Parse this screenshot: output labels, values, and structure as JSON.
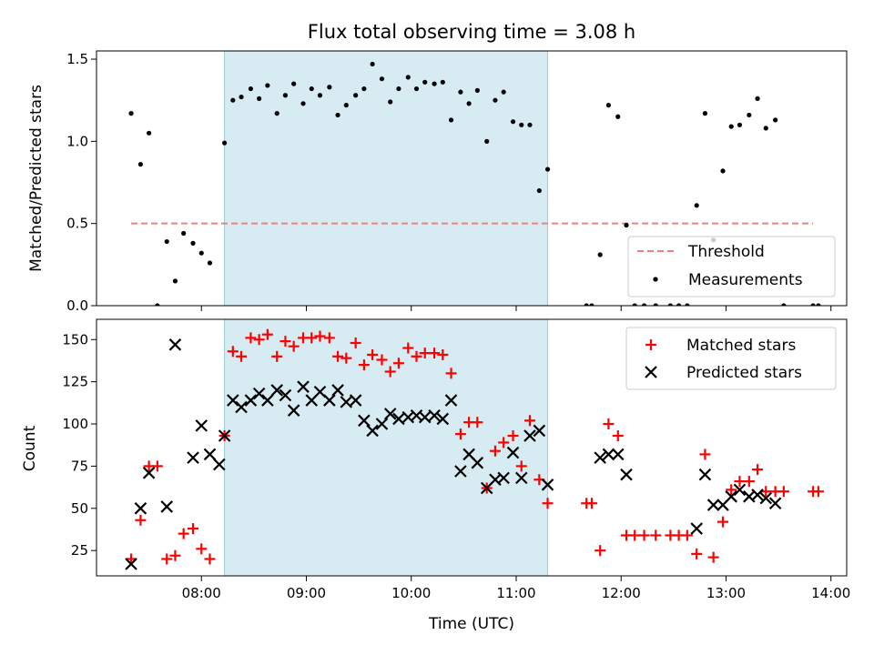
{
  "chart_data": {
    "type": "scatter",
    "title": "Flux total observing time = 3.08 h",
    "xlabel": "Time (UTC)",
    "x_ticks": [
      "08:00",
      "09:00",
      "10:00",
      "11:00",
      "12:00",
      "13:00",
      "14:00"
    ],
    "x_range_hours": [
      7.0,
      14.15
    ],
    "shaded_interval_hours": [
      8.22,
      11.3
    ],
    "shade_color": "#add8e6",
    "panels": [
      {
        "ylabel": "Matched/Predicted stars",
        "ylim": [
          0,
          1.55
        ],
        "y_ticks": [
          "0.0",
          "0.5",
          "1.0",
          "1.5"
        ],
        "y_tick_values": [
          0,
          0.5,
          1.0,
          1.5
        ],
        "legend_position": "lower right",
        "series": [
          {
            "name": "Threshold",
            "kind": "dashed-line",
            "color": "#f08080",
            "x": [
              7.33,
              13.83
            ],
            "y": [
              0.5,
              0.5
            ]
          },
          {
            "name": "Measurements",
            "kind": "dot",
            "color": "#000000",
            "x": [
              7.33,
              7.42,
              7.5,
              7.58,
              7.67,
              7.75,
              7.83,
              7.92,
              8.0,
              8.08,
              8.22,
              8.3,
              8.38,
              8.47,
              8.55,
              8.63,
              8.72,
              8.8,
              8.88,
              8.97,
              9.05,
              9.13,
              9.22,
              9.3,
              9.38,
              9.47,
              9.55,
              9.63,
              9.72,
              9.8,
              9.88,
              9.97,
              10.05,
              10.13,
              10.22,
              10.3,
              10.38,
              10.47,
              10.55,
              10.63,
              10.72,
              10.8,
              10.88,
              10.97,
              11.05,
              11.13,
              11.22,
              11.3,
              11.67,
              11.72,
              11.8,
              11.88,
              11.97,
              12.05,
              12.13,
              12.22,
              12.33,
              12.47,
              12.55,
              12.63,
              12.72,
              12.8,
              12.88,
              12.97,
              13.05,
              13.13,
              13.22,
              13.3,
              13.38,
              13.47,
              13.55,
              13.83,
              13.88
            ],
            "y": [
              1.17,
              0.86,
              1.05,
              0.0,
              0.39,
              0.15,
              0.44,
              0.38,
              0.32,
              0.26,
              0.99,
              1.25,
              1.27,
              1.32,
              1.26,
              1.34,
              1.17,
              1.28,
              1.35,
              1.23,
              1.32,
              1.28,
              1.33,
              1.16,
              1.22,
              1.28,
              1.32,
              1.47,
              1.38,
              1.24,
              1.32,
              1.39,
              1.32,
              1.36,
              1.35,
              1.36,
              1.13,
              1.3,
              1.23,
              1.31,
              1.0,
              1.25,
              1.3,
              1.12,
              1.1,
              1.1,
              0.7,
              0.83,
              0.0,
              0.0,
              0.31,
              1.22,
              1.15,
              0.49,
              0.0,
              0.0,
              0.0,
              0.0,
              0.0,
              0.0,
              0.61,
              1.17,
              0.4,
              0.82,
              1.09,
              1.1,
              1.16,
              1.26,
              1.08,
              1.13,
              0.0,
              0.0,
              0.0
            ]
          }
        ]
      },
      {
        "ylabel": "Count",
        "ylim": [
          10,
          162
        ],
        "y_ticks": [
          "25",
          "50",
          "75",
          "100",
          "125",
          "150"
        ],
        "y_tick_values": [
          25,
          50,
          75,
          100,
          125,
          150
        ],
        "legend_position": "upper right",
        "series": [
          {
            "name": "Matched stars",
            "kind": "plus",
            "color": "#ff0000",
            "x": [
              7.33,
              7.42,
              7.5,
              7.58,
              7.67,
              7.75,
              7.83,
              7.92,
              8.0,
              8.08,
              8.22,
              8.3,
              8.38,
              8.47,
              8.55,
              8.63,
              8.72,
              8.8,
              8.88,
              8.97,
              9.05,
              9.13,
              9.22,
              9.3,
              9.38,
              9.47,
              9.55,
              9.63,
              9.72,
              9.8,
              9.88,
              9.97,
              10.05,
              10.13,
              10.22,
              10.3,
              10.38,
              10.47,
              10.55,
              10.63,
              10.72,
              10.8,
              10.88,
              10.97,
              11.05,
              11.13,
              11.22,
              11.3,
              11.67,
              11.72,
              11.8,
              11.88,
              11.97,
              12.05,
              12.13,
              12.22,
              12.33,
              12.47,
              12.55,
              12.63,
              12.72,
              12.8,
              12.88,
              12.97,
              13.05,
              13.13,
              13.22,
              13.3,
              13.38,
              13.47,
              13.55,
              13.83,
              13.88
            ],
            "y": [
              20,
              43,
              75,
              75,
              20,
              22,
              35,
              38,
              26,
              20,
              93,
              143,
              140,
              151,
              150,
              153,
              140,
              149,
              146,
              151,
              151,
              152,
              151,
              140,
              139,
              148,
              135,
              141,
              138,
              131,
              136,
              145,
              140,
              142,
              142,
              141,
              130,
              94,
              101,
              101,
              62,
              84,
              89,
              93,
              75,
              102,
              67,
              53,
              53,
              53,
              25,
              100,
              93,
              34,
              34,
              34,
              34,
              34,
              34,
              34,
              23,
              82,
              21,
              42,
              61,
              66,
              66,
              73,
              60,
              60,
              60,
              60,
              60
            ]
          },
          {
            "name": "Predicted stars",
            "kind": "x",
            "color": "#000000",
            "x": [
              7.33,
              7.42,
              7.5,
              7.67,
              7.75,
              7.92,
              8.0,
              8.08,
              8.17,
              8.22,
              8.3,
              8.38,
              8.47,
              8.55,
              8.63,
              8.72,
              8.8,
              8.88,
              8.97,
              9.05,
              9.13,
              9.22,
              9.3,
              9.38,
              9.47,
              9.55,
              9.63,
              9.72,
              9.8,
              9.88,
              9.97,
              10.05,
              10.13,
              10.22,
              10.3,
              10.38,
              10.47,
              10.55,
              10.63,
              10.72,
              10.8,
              10.88,
              10.97,
              11.05,
              11.13,
              11.22,
              11.3,
              11.8,
              11.88,
              11.97,
              12.05,
              12.72,
              12.8,
              12.88,
              12.97,
              13.05,
              13.13,
              13.22,
              13.3,
              13.38,
              13.47
            ],
            "y": [
              17,
              50,
              71,
              51,
              147,
              80,
              99,
              82,
              76,
              93,
              114,
              110,
              114,
              118,
              114,
              120,
              117,
              108,
              122,
              114,
              119,
              114,
              120,
              113,
              114,
              102,
              96,
              100,
              106,
              103,
              104,
              105,
              104,
              105,
              103,
              114,
              72,
              82,
              77,
              62,
              67,
              68,
              83,
              68,
              93,
              96,
              64,
              80,
              82,
              82,
              70,
              38,
              70,
              52,
              52,
              57,
              61,
              57,
              58,
              56,
              53
            ]
          }
        ]
      }
    ]
  }
}
